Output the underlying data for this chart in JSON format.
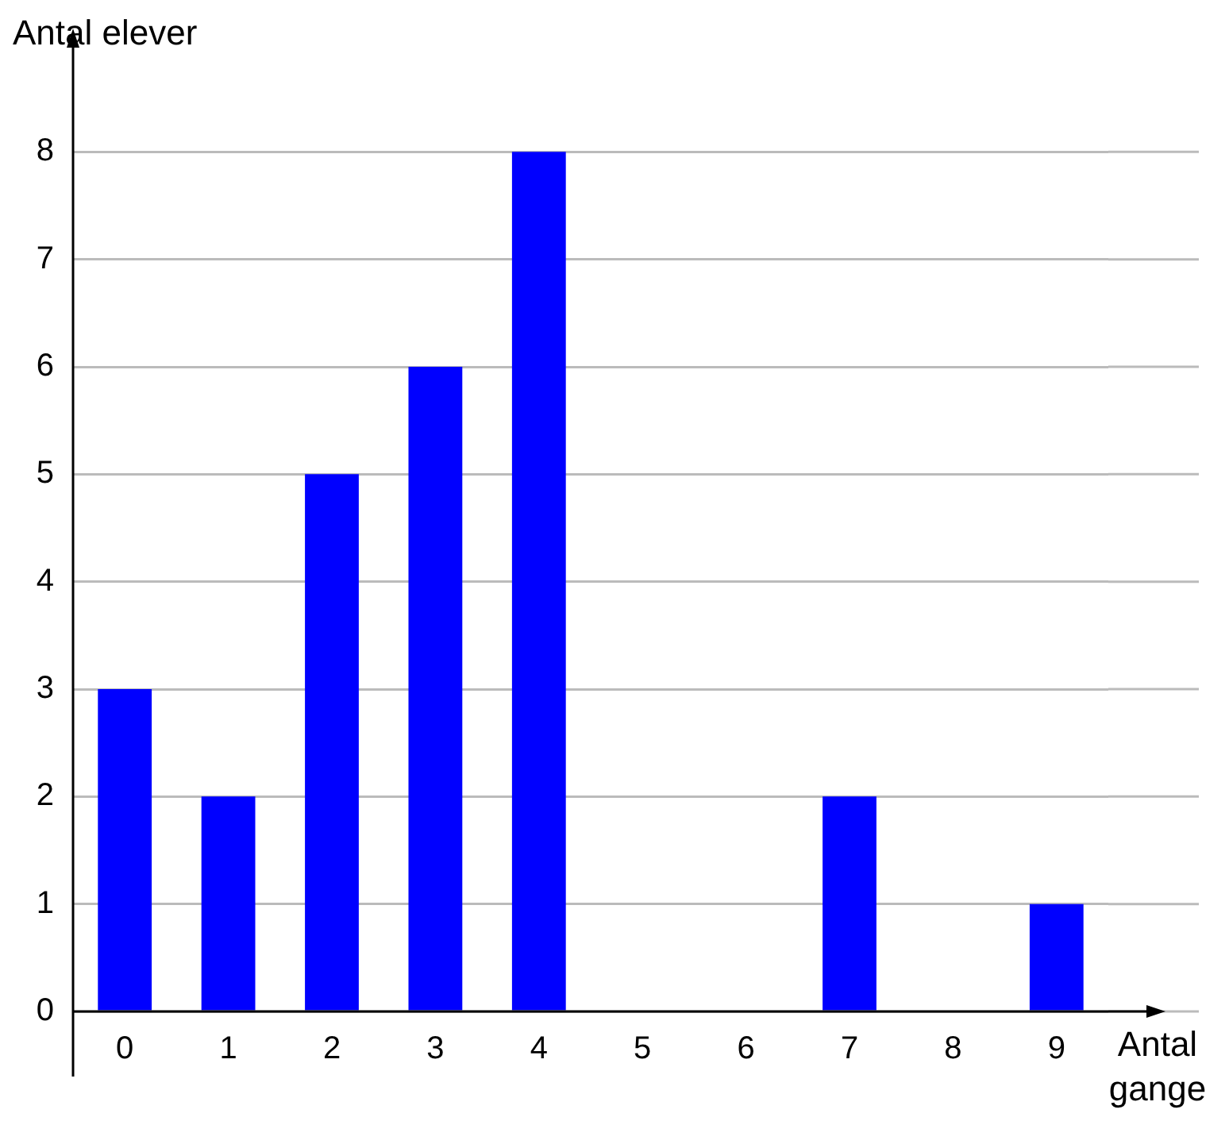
{
  "chart_data": {
    "type": "bar",
    "xlabel": "Antal gange",
    "ylabel": "Antal elever",
    "categories": [
      "0",
      "1",
      "2",
      "3",
      "4",
      "5",
      "6",
      "7",
      "8",
      "9"
    ],
    "values": [
      3,
      2,
      5,
      6,
      8,
      0,
      0,
      2,
      0,
      1
    ],
    "color": "#0000ff",
    "ylim": [
      0,
      9
    ],
    "yticks": [
      0,
      1,
      2,
      3,
      4,
      5,
      6,
      7,
      8
    ],
    "grid": "y",
    "legend": false
  }
}
